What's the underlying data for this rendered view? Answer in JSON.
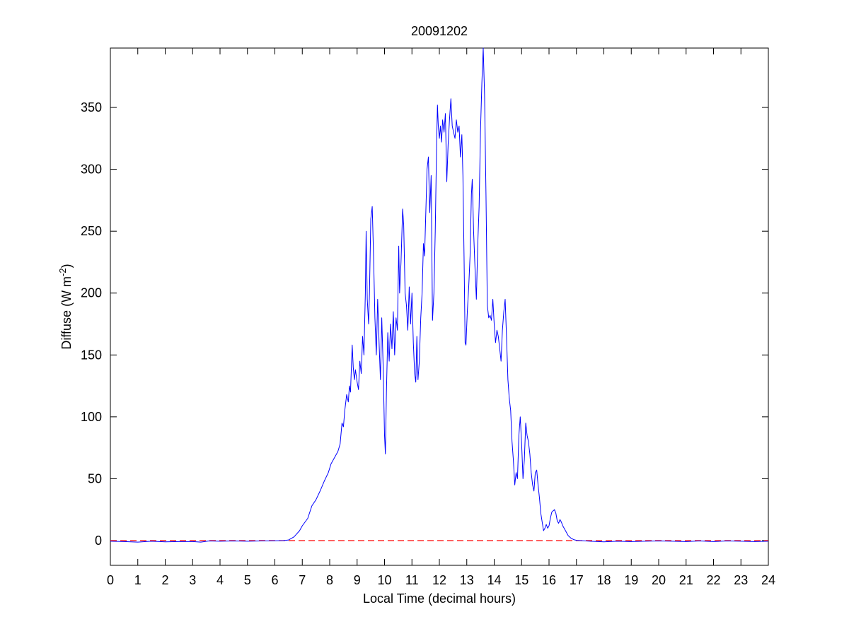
{
  "chart_data": {
    "type": "line",
    "title": "20091202",
    "xlabel": "Local Time (decimal hours)",
    "ylabel": {
      "prefix": "Diffuse (W m",
      "superscript": "-2",
      "suffix": ")"
    },
    "xlim": [
      0,
      24
    ],
    "ylim": [
      -20,
      398
    ],
    "xticks": [
      0,
      1,
      2,
      3,
      4,
      5,
      6,
      7,
      8,
      9,
      10,
      11,
      12,
      13,
      14,
      15,
      16,
      17,
      18,
      19,
      20,
      21,
      22,
      23,
      24
    ],
    "yticks": [
      0,
      50,
      100,
      150,
      200,
      250,
      300,
      350
    ],
    "grid": false,
    "legend": "none",
    "reference_line": {
      "y": 0,
      "style": "dashed",
      "color": "#ff0000"
    },
    "series": [
      {
        "color": "#0000ff",
        "points": [
          [
            0.0,
            -0.5
          ],
          [
            0.5,
            -0.8
          ],
          [
            1.0,
            -1.2
          ],
          [
            1.5,
            -0.5
          ],
          [
            2.0,
            -1.0
          ],
          [
            2.5,
            -0.8
          ],
          [
            3.0,
            -0.8
          ],
          [
            3.3,
            -1.2
          ],
          [
            3.6,
            -0.3
          ],
          [
            4.0,
            -0.5
          ],
          [
            4.5,
            -0.3
          ],
          [
            5.0,
            -0.5
          ],
          [
            5.5,
            -0.3
          ],
          [
            6.0,
            -0.2
          ],
          [
            6.3,
            0.0
          ],
          [
            6.5,
            0.5
          ],
          [
            6.7,
            3
          ],
          [
            6.9,
            8
          ],
          [
            7.0,
            12
          ],
          [
            7.2,
            18
          ],
          [
            7.35,
            28
          ],
          [
            7.5,
            33
          ],
          [
            7.65,
            40
          ],
          [
            7.8,
            48
          ],
          [
            7.95,
            55
          ],
          [
            8.05,
            62
          ],
          [
            8.15,
            66
          ],
          [
            8.3,
            72
          ],
          [
            8.38,
            78
          ],
          [
            8.45,
            95
          ],
          [
            8.5,
            92
          ],
          [
            8.55,
            105
          ],
          [
            8.62,
            118
          ],
          [
            8.68,
            112
          ],
          [
            8.72,
            125
          ],
          [
            8.76,
            120
          ],
          [
            8.82,
            158
          ],
          [
            8.86,
            140
          ],
          [
            8.9,
            130
          ],
          [
            8.94,
            138
          ],
          [
            9.0,
            128
          ],
          [
            9.05,
            122
          ],
          [
            9.1,
            145
          ],
          [
            9.15,
            135
          ],
          [
            9.2,
            165
          ],
          [
            9.25,
            150
          ],
          [
            9.3,
            200
          ],
          [
            9.33,
            250
          ],
          [
            9.37,
            195
          ],
          [
            9.42,
            175
          ],
          [
            9.45,
            200
          ],
          [
            9.5,
            260
          ],
          [
            9.55,
            270
          ],
          [
            9.6,
            230
          ],
          [
            9.65,
            180
          ],
          [
            9.7,
            150
          ],
          [
            9.75,
            195
          ],
          [
            9.8,
            160
          ],
          [
            9.85,
            130
          ],
          [
            9.9,
            180
          ],
          [
            9.95,
            140
          ],
          [
            10.0,
            85
          ],
          [
            10.03,
            70
          ],
          [
            10.07,
            120
          ],
          [
            10.12,
            168
          ],
          [
            10.17,
            145
          ],
          [
            10.22,
            175
          ],
          [
            10.27,
            155
          ],
          [
            10.32,
            185
          ],
          [
            10.37,
            150
          ],
          [
            10.42,
            180
          ],
          [
            10.47,
            170
          ],
          [
            10.52,
            238
          ],
          [
            10.55,
            200
          ],
          [
            10.6,
            225
          ],
          [
            10.66,
            268
          ],
          [
            10.7,
            255
          ],
          [
            10.75,
            200
          ],
          [
            10.8,
            190
          ],
          [
            10.85,
            170
          ],
          [
            10.9,
            205
          ],
          [
            10.95,
            175
          ],
          [
            11.0,
            200
          ],
          [
            11.05,
            160
          ],
          [
            11.1,
            135
          ],
          [
            11.14,
            128
          ],
          [
            11.18,
            165
          ],
          [
            11.22,
            130
          ],
          [
            11.27,
            145
          ],
          [
            11.32,
            180
          ],
          [
            11.37,
            200
          ],
          [
            11.42,
            240
          ],
          [
            11.46,
            230
          ],
          [
            11.5,
            260
          ],
          [
            11.55,
            300
          ],
          [
            11.6,
            310
          ],
          [
            11.65,
            265
          ],
          [
            11.7,
            295
          ],
          [
            11.75,
            178
          ],
          [
            11.8,
            200
          ],
          [
            11.85,
            250
          ],
          [
            11.9,
            320
          ],
          [
            11.93,
            352
          ],
          [
            11.96,
            335
          ],
          [
            12.0,
            325
          ],
          [
            12.04,
            335
          ],
          [
            12.08,
            322
          ],
          [
            12.12,
            340
          ],
          [
            12.17,
            330
          ],
          [
            12.22,
            345
          ],
          [
            12.27,
            290
          ],
          [
            12.32,
            320
          ],
          [
            12.37,
            340
          ],
          [
            12.42,
            357
          ],
          [
            12.47,
            335
          ],
          [
            12.52,
            330
          ],
          [
            12.57,
            325
          ],
          [
            12.62,
            340
          ],
          [
            12.67,
            330
          ],
          [
            12.72,
            335
          ],
          [
            12.77,
            310
          ],
          [
            12.82,
            328
          ],
          [
            12.86,
            295
          ],
          [
            12.9,
            230
          ],
          [
            12.94,
            160
          ],
          [
            12.97,
            158
          ],
          [
            13.02,
            185
          ],
          [
            13.07,
            205
          ],
          [
            13.12,
            230
          ],
          [
            13.17,
            280
          ],
          [
            13.2,
            292
          ],
          [
            13.25,
            250
          ],
          [
            13.3,
            220
          ],
          [
            13.35,
            195
          ],
          [
            13.4,
            240
          ],
          [
            13.45,
            270
          ],
          [
            13.5,
            330
          ],
          [
            13.55,
            370
          ],
          [
            13.6,
            398
          ],
          [
            13.65,
            360
          ],
          [
            13.7,
            280
          ],
          [
            13.75,
            190
          ],
          [
            13.8,
            180
          ],
          [
            13.85,
            182
          ],
          [
            13.9,
            178
          ],
          [
            13.95,
            195
          ],
          [
            14.0,
            175
          ],
          [
            14.05,
            160
          ],
          [
            14.1,
            170
          ],
          [
            14.15,
            165
          ],
          [
            14.2,
            155
          ],
          [
            14.25,
            145
          ],
          [
            14.3,
            170
          ],
          [
            14.35,
            185
          ],
          [
            14.4,
            195
          ],
          [
            14.45,
            165
          ],
          [
            14.5,
            130
          ],
          [
            14.55,
            115
          ],
          [
            14.6,
            105
          ],
          [
            14.65,
            80
          ],
          [
            14.7,
            65
          ],
          [
            14.75,
            45
          ],
          [
            14.8,
            55
          ],
          [
            14.85,
            50
          ],
          [
            14.9,
            85
          ],
          [
            14.95,
            100
          ],
          [
            15.0,
            78
          ],
          [
            15.05,
            50
          ],
          [
            15.1,
            65
          ],
          [
            15.15,
            95
          ],
          [
            15.2,
            85
          ],
          [
            15.25,
            80
          ],
          [
            15.3,
            70
          ],
          [
            15.35,
            55
          ],
          [
            15.4,
            45
          ],
          [
            15.45,
            40
          ],
          [
            15.5,
            55
          ],
          [
            15.55,
            57
          ],
          [
            15.6,
            45
          ],
          [
            15.65,
            35
          ],
          [
            15.7,
            22
          ],
          [
            15.75,
            15
          ],
          [
            15.8,
            8
          ],
          [
            15.85,
            10
          ],
          [
            15.9,
            13
          ],
          [
            15.95,
            10
          ],
          [
            16.0,
            12
          ],
          [
            16.05,
            18
          ],
          [
            16.1,
            23
          ],
          [
            16.15,
            24
          ],
          [
            16.2,
            25
          ],
          [
            16.25,
            22
          ],
          [
            16.3,
            16
          ],
          [
            16.35,
            14
          ],
          [
            16.4,
            17
          ],
          [
            16.45,
            15
          ],
          [
            16.5,
            12
          ],
          [
            16.6,
            8
          ],
          [
            16.7,
            4
          ],
          [
            16.8,
            2
          ],
          [
            16.9,
            0.8
          ],
          [
            17.0,
            0.2
          ],
          [
            17.5,
            -0.5
          ],
          [
            18.0,
            -1.0
          ],
          [
            18.5,
            -0.5
          ],
          [
            19.0,
            -0.8
          ],
          [
            19.5,
            -0.5
          ],
          [
            20.0,
            -0.3
          ],
          [
            20.5,
            -0.5
          ],
          [
            21.0,
            -0.8
          ],
          [
            21.5,
            -0.3
          ],
          [
            22.0,
            -0.8
          ],
          [
            22.5,
            -0.3
          ],
          [
            23.0,
            -0.5
          ],
          [
            23.5,
            -0.8
          ],
          [
            24.0,
            -0.5
          ]
        ]
      }
    ]
  }
}
